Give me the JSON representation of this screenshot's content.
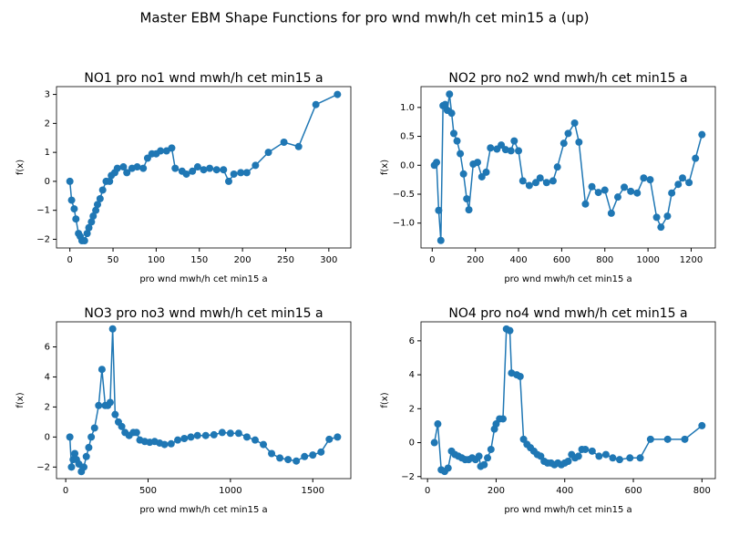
{
  "title": "Master EBM Shape Functions for pro  wnd mwh/h cet min15 a (up)",
  "chart_data": [
    {
      "type": "line",
      "title": "NO1 pro no1 wnd mwh/h cet min15 a",
      "xlabel": "pro  wnd mwh/h cet min15 a",
      "ylabel": "f(x)",
      "color": "#1f77b4",
      "x": [
        0,
        2,
        5,
        7,
        10,
        12,
        14,
        17,
        20,
        22,
        25,
        27,
        30,
        32,
        35,
        38,
        42,
        46,
        48,
        52,
        55,
        62,
        66,
        72,
        78,
        85,
        90,
        95,
        100,
        105,
        112,
        118,
        122,
        130,
        135,
        142,
        148,
        155,
        162,
        170,
        178,
        184,
        190,
        198,
        205,
        215,
        230,
        248,
        265,
        285,
        310
      ],
      "values": [
        0,
        -0.65,
        -0.95,
        -1.3,
        -1.8,
        -1.9,
        -2.05,
        -2.05,
        -1.8,
        -1.6,
        -1.4,
        -1.2,
        -1.0,
        -0.8,
        -0.6,
        -0.3,
        0,
        0,
        0.2,
        0.3,
        0.45,
        0.5,
        0.3,
        0.45,
        0.5,
        0.45,
        0.8,
        0.95,
        0.95,
        1.05,
        1.05,
        1.15,
        0.45,
        0.35,
        0.25,
        0.35,
        0.5,
        0.4,
        0.45,
        0.4,
        0.4,
        0.0,
        0.25,
        0.3,
        0.3,
        0.55,
        1.0,
        1.35,
        1.2,
        2.65,
        3.0
      ],
      "xlim": [
        -15.5,
        325.5
      ],
      "ylim": [
        -2.3,
        3.27
      ],
      "xticks": [
        0,
        50,
        100,
        150,
        200,
        250,
        300
      ],
      "yticks": [
        {
          "value": -2,
          "label": "−2"
        },
        {
          "value": -1,
          "label": "−1"
        },
        0,
        1,
        2,
        3
      ]
    },
    {
      "type": "line",
      "title": "NO2 pro no2 wnd mwh/h cet min15 a",
      "xlabel": "pro  wnd mwh/h cet min15 a",
      "ylabel": "f(x)",
      "color": "#1f77b4",
      "x": [
        10,
        20,
        30,
        40,
        50,
        60,
        70,
        80,
        90,
        100,
        115,
        130,
        145,
        160,
        170,
        190,
        210,
        230,
        250,
        270,
        300,
        320,
        340,
        365,
        380,
        400,
        420,
        450,
        480,
        500,
        530,
        560,
        580,
        610,
        630,
        660,
        680,
        710,
        740,
        770,
        800,
        830,
        860,
        890,
        920,
        950,
        980,
        1010,
        1040,
        1060,
        1090,
        1110,
        1140,
        1160,
        1190,
        1220,
        1250
      ],
      "values": [
        0,
        0.05,
        -0.78,
        -1.3,
        1.03,
        1.05,
        0.95,
        1.23,
        0.9,
        0.55,
        0.42,
        0.2,
        -0.15,
        -0.58,
        -0.77,
        0.02,
        0.05,
        -0.2,
        -0.12,
        0.3,
        0.28,
        0.35,
        0.27,
        0.25,
        0.42,
        0.25,
        -0.27,
        -0.35,
        -0.3,
        -0.22,
        -0.3,
        -0.27,
        -0.03,
        0.38,
        0.55,
        0.73,
        0.4,
        -0.67,
        -0.37,
        -0.47,
        -0.43,
        -0.83,
        -0.55,
        -0.38,
        -0.45,
        -0.48,
        -0.22,
        -0.25,
        -0.9,
        -1.07,
        -0.88,
        -0.48,
        -0.33,
        -0.22,
        -0.3,
        0.12,
        0.53
      ],
      "xlim": [
        -52,
        1312
      ],
      "ylim": [
        -1.43,
        1.36
      ],
      "xticks": [
        0,
        200,
        400,
        600,
        800,
        1000,
        1200
      ],
      "yticks": [
        {
          "value": -1,
          "label": "−1.0"
        },
        {
          "value": -0.5,
          "label": "−0.5"
        },
        {
          "value": 0,
          "label": "0.0"
        },
        0.5,
        {
          "value": 1,
          "label": "1.0"
        }
      ]
    },
    {
      "type": "line",
      "title": "NO3 pro no3 wnd mwh/h cet min15 a",
      "xlabel": "pro  wnd mwh/h cet min15 a",
      "ylabel": "f(x)",
      "color": "#1f77b4",
      "x": [
        25,
        35,
        45,
        55,
        65,
        80,
        95,
        110,
        125,
        140,
        155,
        175,
        200,
        220,
        240,
        255,
        270,
        285,
        300,
        320,
        340,
        360,
        385,
        410,
        430,
        450,
        480,
        510,
        540,
        570,
        600,
        640,
        680,
        720,
        760,
        800,
        850,
        900,
        950,
        1000,
        1050,
        1100,
        1150,
        1200,
        1250,
        1300,
        1350,
        1400,
        1450,
        1500,
        1550,
        1600,
        1650
      ],
      "values": [
        0,
        -2.0,
        -1.5,
        -1.1,
        -1.5,
        -1.8,
        -2.3,
        -2.0,
        -1.3,
        -0.7,
        0,
        0.6,
        2.1,
        4.5,
        2.1,
        2.1,
        2.3,
        7.2,
        1.5,
        1.0,
        0.7,
        0.3,
        0.1,
        0.3,
        0.3,
        -0.2,
        -0.3,
        -0.35,
        -0.3,
        -0.4,
        -0.5,
        -0.45,
        -0.2,
        -0.1,
        0,
        0.1,
        0.1,
        0.15,
        0.3,
        0.25,
        0.25,
        0,
        -0.2,
        -0.5,
        -1.1,
        -1.4,
        -1.5,
        -1.6,
        -1.3,
        -1.2,
        -1.0,
        -0.15,
        0
      ],
      "xlim": [
        -56,
        1731
      ],
      "ylim": [
        -2.77,
        7.67
      ],
      "xticks": [
        0,
        500,
        1000,
        1500
      ],
      "yticks": [
        {
          "value": -2,
          "label": "−2"
        },
        0,
        2,
        4,
        6
      ]
    },
    {
      "type": "line",
      "title": "NO4 pro no4 wnd mwh/h cet min15 a",
      "xlabel": "pro  wnd mwh/h cet min15 a",
      "ylabel": "f(x)",
      "color": "#1f77b4",
      "x": [
        20,
        30,
        40,
        50,
        60,
        70,
        80,
        90,
        100,
        110,
        120,
        130,
        140,
        150,
        155,
        165,
        175,
        185,
        195,
        200,
        210,
        220,
        230,
        240,
        245,
        260,
        270,
        280,
        290,
        300,
        310,
        320,
        330,
        340,
        350,
        360,
        370,
        380,
        390,
        400,
        410,
        420,
        430,
        440,
        450,
        460,
        480,
        500,
        520,
        540,
        560,
        590,
        620,
        650,
        700,
        750,
        800
      ],
      "values": [
        0,
        1.1,
        -1.6,
        -1.7,
        -1.5,
        -0.5,
        -0.7,
        -0.8,
        -0.9,
        -1.0,
        -1.0,
        -0.9,
        -1.0,
        -0.8,
        -1.4,
        -1.3,
        -0.9,
        -0.4,
        0.8,
        1.1,
        1.4,
        1.4,
        6.7,
        6.6,
        4.1,
        4.0,
        3.9,
        0.2,
        -0.1,
        -0.3,
        -0.5,
        -0.7,
        -0.8,
        -1.1,
        -1.2,
        -1.2,
        -1.3,
        -1.2,
        -1.3,
        -1.2,
        -1.1,
        -0.7,
        -0.9,
        -0.8,
        -0.4,
        -0.4,
        -0.5,
        -0.8,
        -0.7,
        -0.9,
        -1.0,
        -0.9,
        -0.9,
        0.2,
        0.2,
        0.2,
        1.0
      ],
      "xlim": [
        -19,
        839
      ],
      "ylim": [
        -2.12,
        7.12
      ],
      "xticks": [
        0,
        200,
        400,
        600,
        800
      ],
      "yticks": [
        {
          "value": -2,
          "label": "−2"
        },
        0,
        2,
        4,
        6
      ]
    }
  ]
}
